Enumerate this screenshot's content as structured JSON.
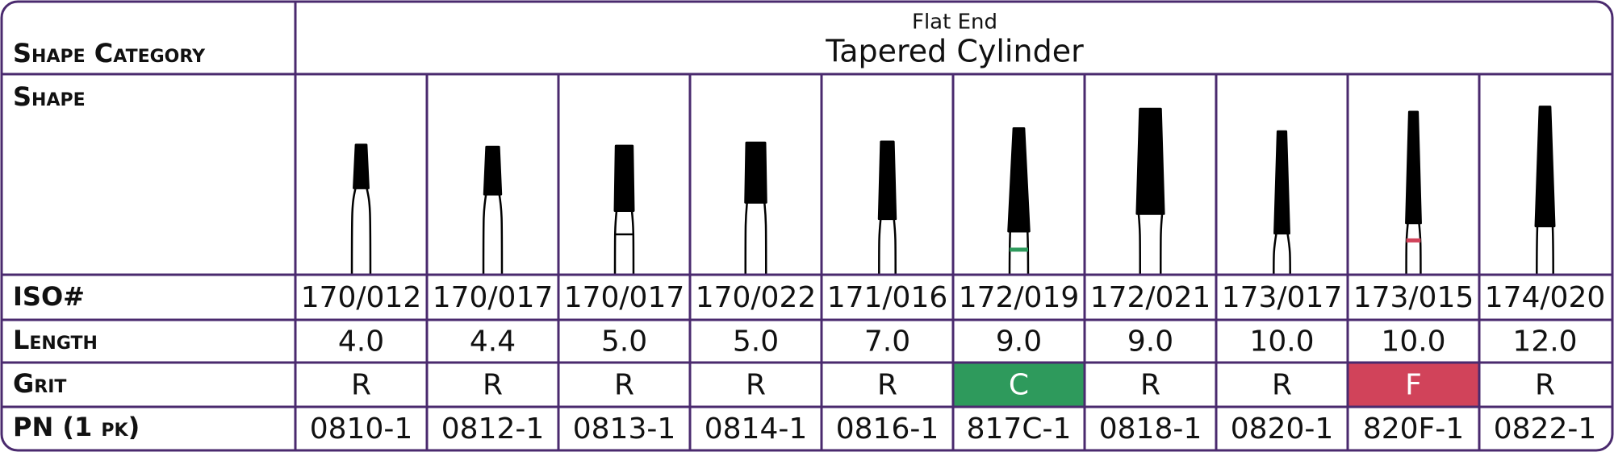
{
  "header": {
    "category_label": "Shape Category",
    "subtitle": "Flat End",
    "title": "Tapered Cylinder"
  },
  "row_labels": {
    "shape": "Shape",
    "iso": "ISO#",
    "length": "Length",
    "grit": "Grit",
    "pn": "PN (1 pk)"
  },
  "columns": [
    {
      "iso": "170/012",
      "length": "4.0",
      "grit": "R",
      "pn": "0810-1"
    },
    {
      "iso": "170/017",
      "length": "4.4",
      "grit": "R",
      "pn": "0812-1"
    },
    {
      "iso": "170/017",
      "length": "5.0",
      "grit": "R",
      "pn": "0813-1"
    },
    {
      "iso": "170/022",
      "length": "5.0",
      "grit": "R",
      "pn": "0814-1"
    },
    {
      "iso": "171/016",
      "length": "7.0",
      "grit": "R",
      "pn": "0816-1"
    },
    {
      "iso": "172/019",
      "length": "9.0",
      "grit": "C",
      "grit_color": "#2e9a5c",
      "pn": "817C-1"
    },
    {
      "iso": "172/021",
      "length": "9.0",
      "grit": "R",
      "pn": "0818-1"
    },
    {
      "iso": "173/017",
      "length": "10.0",
      "grit": "R",
      "pn": "0820-1"
    },
    {
      "iso": "173/015",
      "length": "10.0",
      "grit": "F",
      "grit_color": "#d1435a",
      "pn": "820F-1"
    },
    {
      "iso": "174/020",
      "length": "12.0",
      "grit": "R",
      "pn": "0822-1"
    }
  ]
}
